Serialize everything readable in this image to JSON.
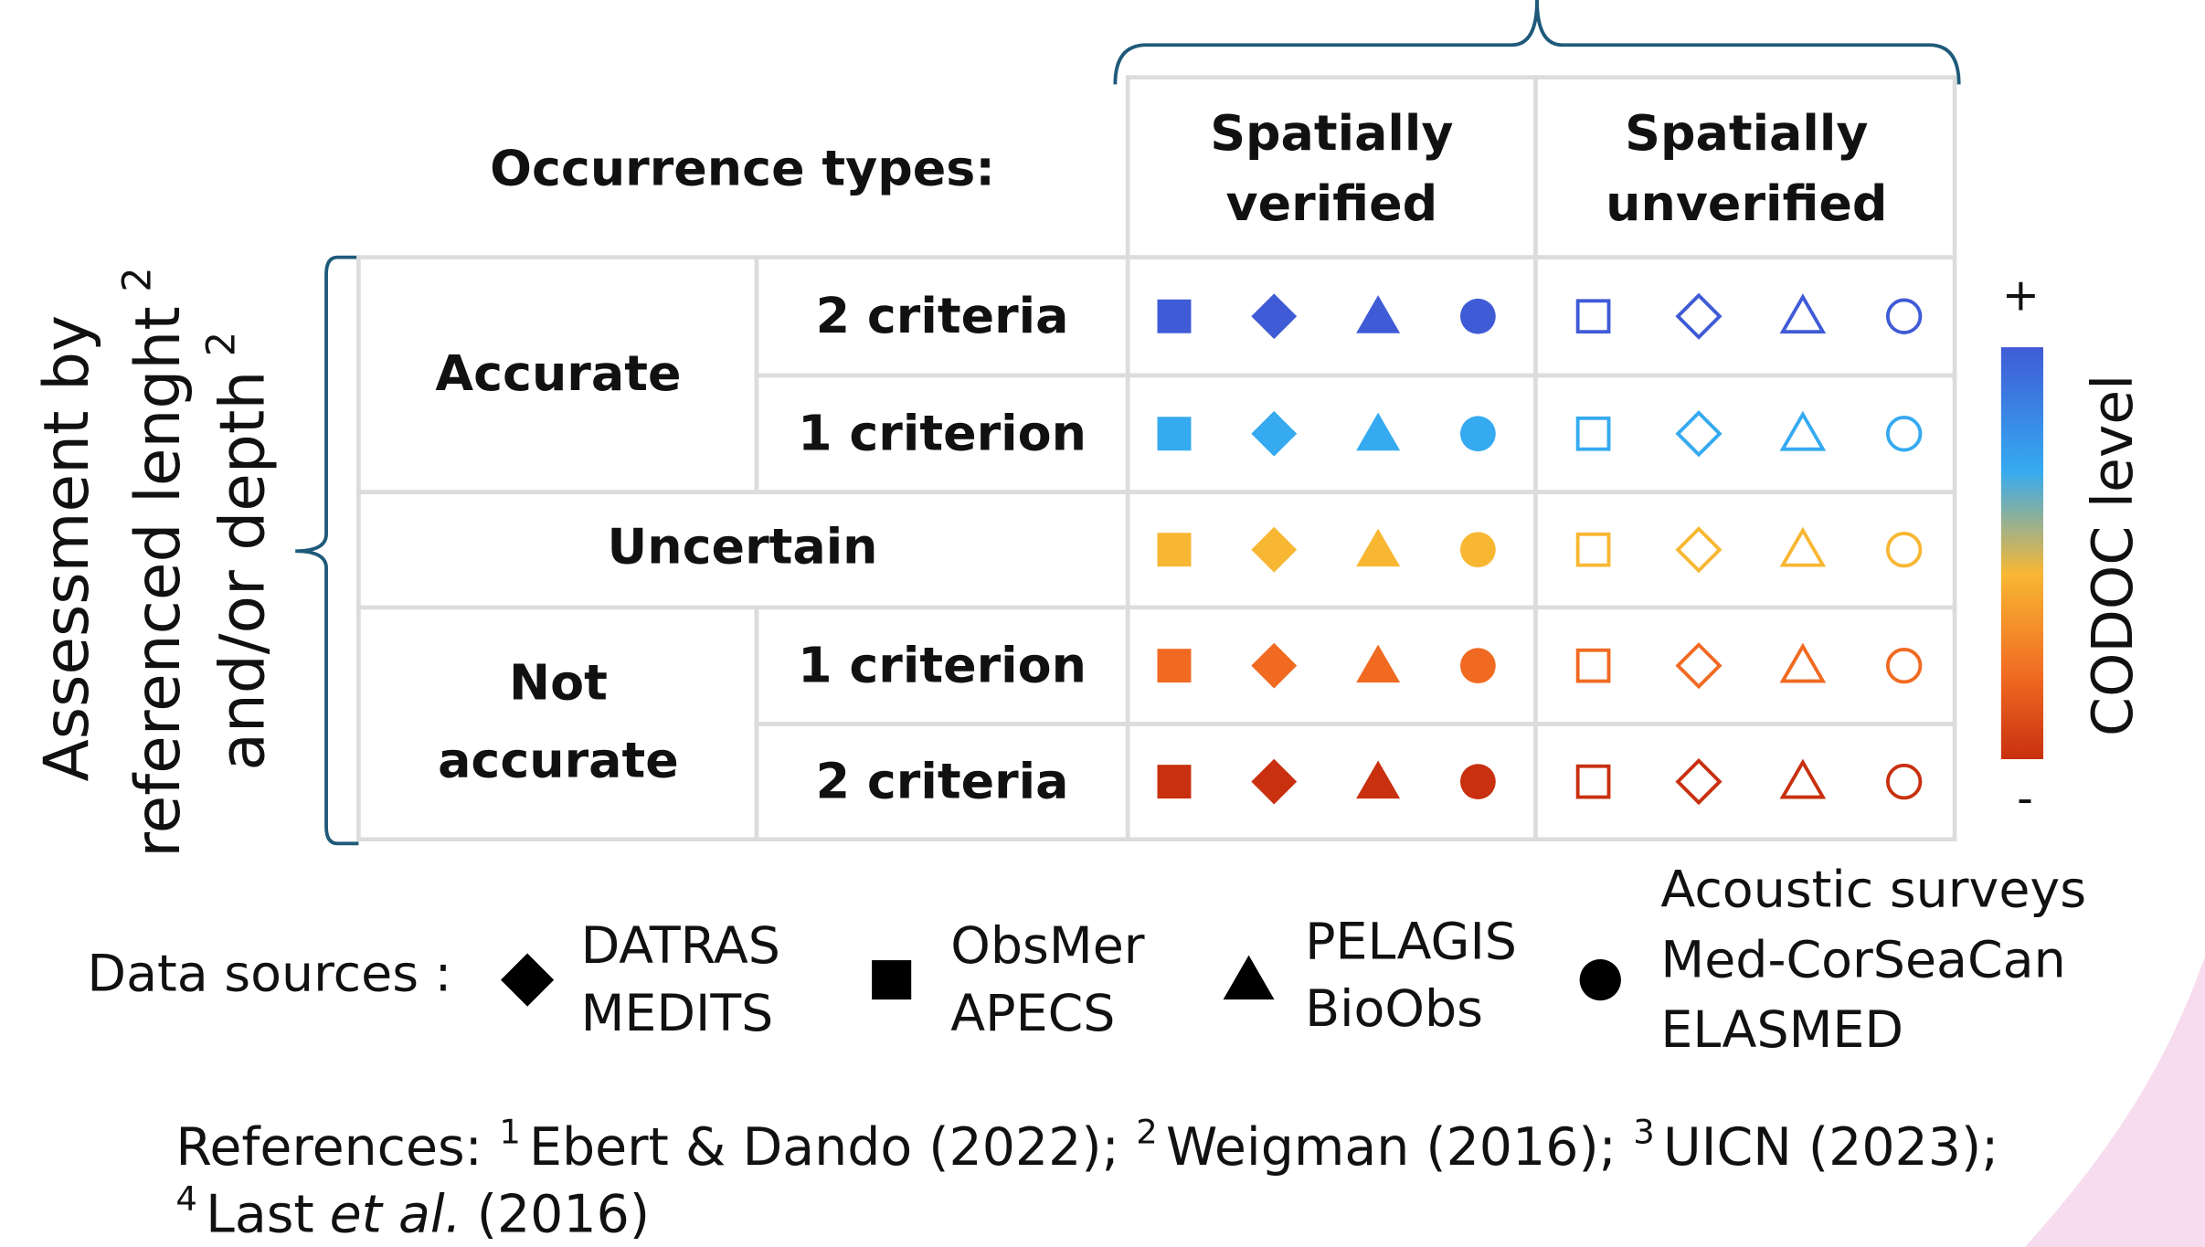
{
  "header": {
    "label": "Occurrence types:"
  },
  "columns": [
    {
      "lines": [
        "Spatially",
        "verified"
      ],
      "filled": true
    },
    {
      "lines": [
        "Spatially",
        "unverified"
      ],
      "filled": false
    }
  ],
  "rows": [
    {
      "group": "Accurate",
      "label": "2 criteria",
      "color": "#3f5bd6"
    },
    {
      "label": "1 criterion",
      "color": "#35aaf0"
    },
    {
      "group": "Uncertain",
      "color": "#f8b733"
    },
    {
      "group_lines": [
        "Not",
        "accurate"
      ],
      "label": "1 criterion",
      "color": "#f06a22"
    },
    {
      "label": "2 criteria",
      "color": "#c8300f"
    }
  ],
  "axis_label": {
    "lines": [
      "Assessment by",
      "referenced lenght",
      "and/or depth"
    ],
    "sups": [
      "2",
      "2"
    ]
  },
  "colorbar": {
    "top": "+",
    "bottom": "-",
    "label": "CODOC level"
  },
  "sources": {
    "label": "Data sources :",
    "items": [
      {
        "symbol": "diamond",
        "lines": [
          "DATRAS",
          "MEDITS"
        ]
      },
      {
        "symbol": "square",
        "lines": [
          "ObsMer",
          "APECS"
        ]
      },
      {
        "symbol": "triangle",
        "lines": [
          "PELAGIS",
          "BioObs"
        ]
      },
      {
        "symbol": "circle",
        "lines": [
          "Acoustic surveys",
          "Med-CorSeaCan",
          "ELASMED"
        ]
      }
    ]
  },
  "references": {
    "label": "References:",
    "items": [
      {
        "sup": "1",
        "text": "Ebert & Dando (2022);"
      },
      {
        "sup": "2",
        "text": "Weigman (2016);"
      },
      {
        "sup": "3",
        "text": "UICN (2023);"
      },
      {
        "sup": "4",
        "text": "Last",
        "italic": "et al.",
        "rest": "(2016)"
      }
    ]
  }
}
